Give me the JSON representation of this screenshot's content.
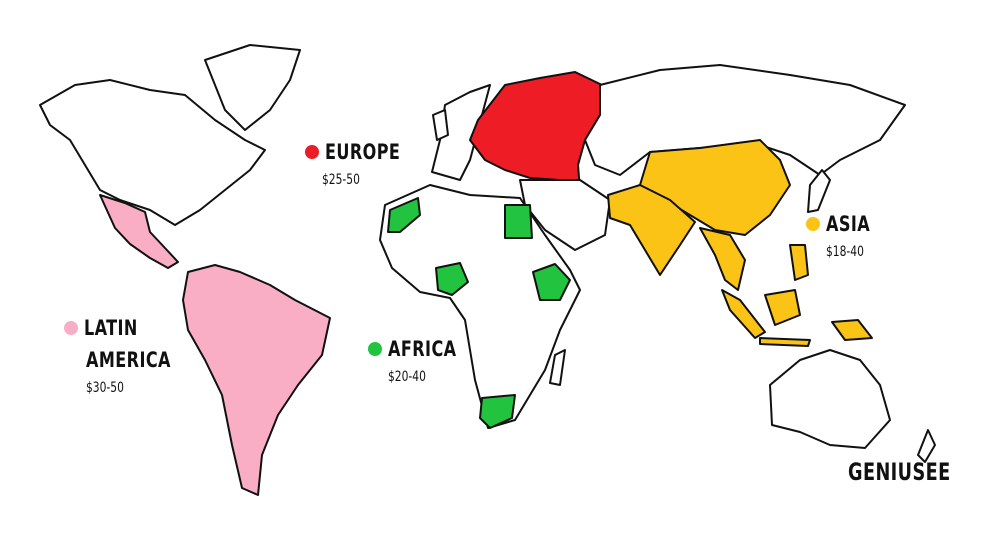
{
  "colors": {
    "europe": "#ee1c25",
    "asia": "#fbc315",
    "africa": "#22c43f",
    "latin_america": "#f9aec6",
    "unhighlighted": "#ffffff"
  },
  "regions": {
    "europe": {
      "name": "EUROPE",
      "price": "$25-50"
    },
    "asia": {
      "name": "ASIA",
      "price": "$18-40"
    },
    "africa": {
      "name": "AFRICA",
      "price": "$20-40"
    },
    "latin_america": {
      "name_line1": "LATIN",
      "name_line2": "AMERICA",
      "price": "$30-50"
    }
  },
  "logo": "GENIUSEE"
}
